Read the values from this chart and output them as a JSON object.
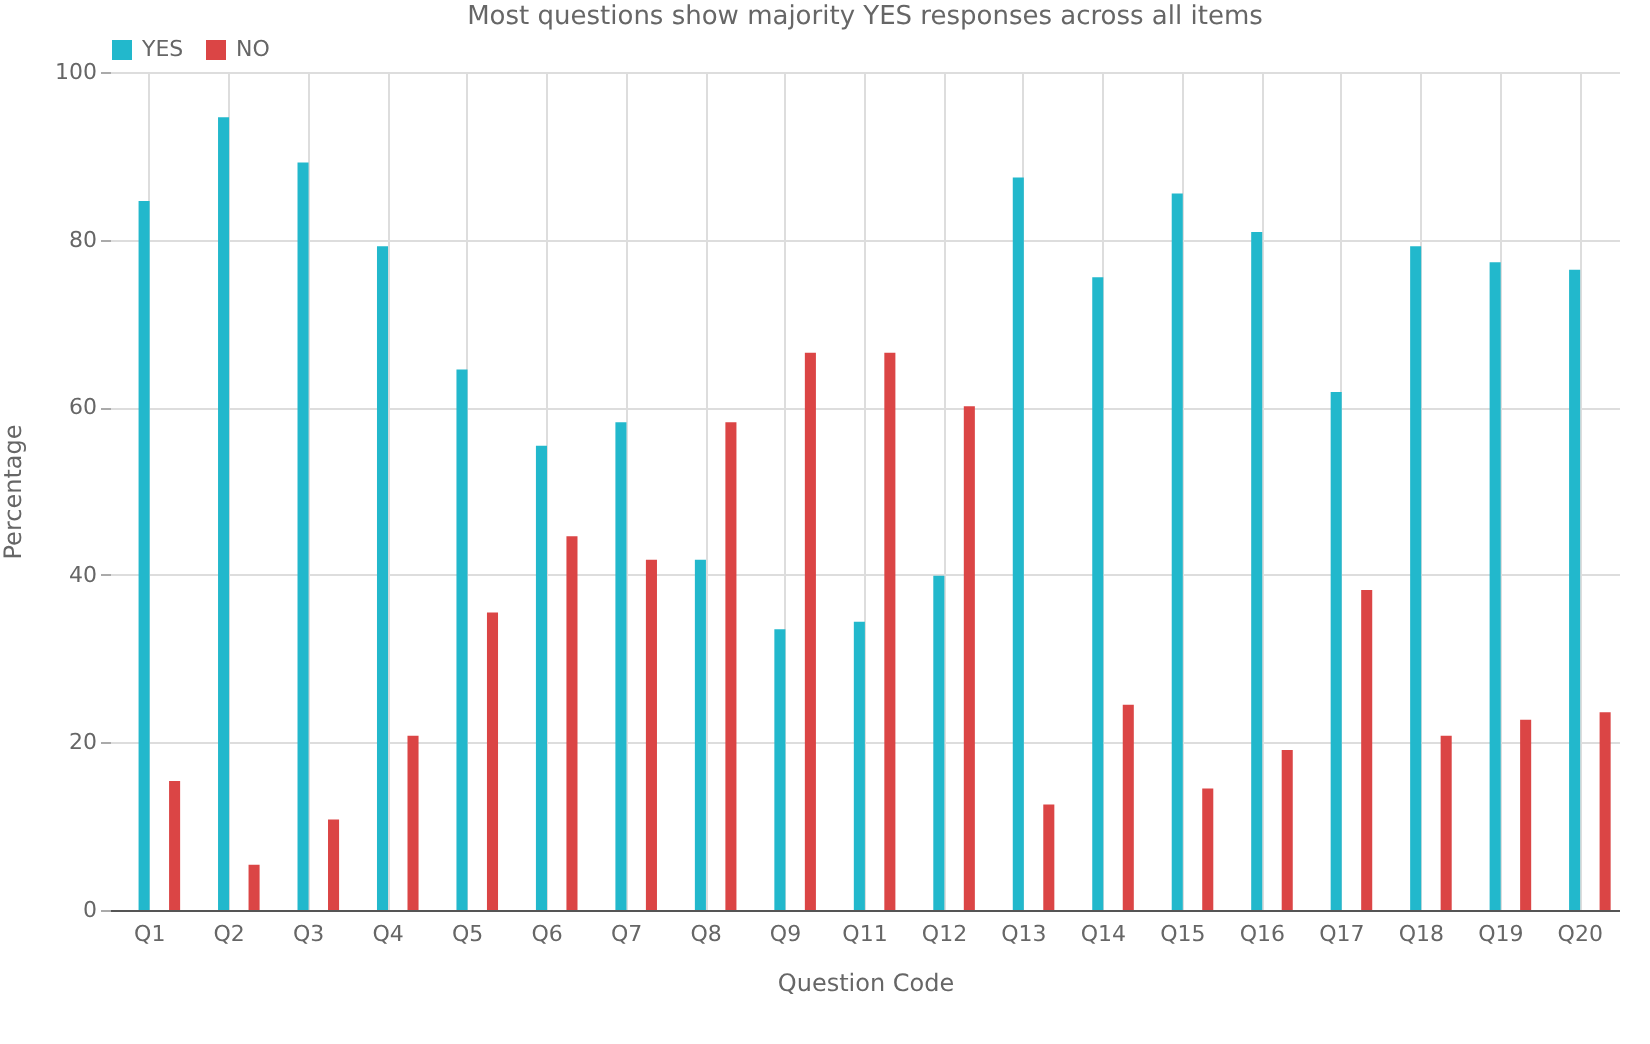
{
  "chart_data": {
    "type": "bar",
    "title": "Most questions show majority YES responses across all items",
    "xlabel": "Question Code",
    "ylabel": "Percentage",
    "categories": [
      "Q1",
      "Q2",
      "Q3",
      "Q4",
      "Q5",
      "Q6",
      "Q7",
      "Q8",
      "Q9",
      "Q11",
      "Q12",
      "Q13",
      "Q14",
      "Q15",
      "Q16",
      "Q17",
      "Q18",
      "Q19",
      "Q20"
    ],
    "series": [
      {
        "name": "YES",
        "color": "#22b8cc",
        "values": [
          84.6,
          94.6,
          89.2,
          79.2,
          64.5,
          55.4,
          58.2,
          41.8,
          33.5,
          34.4,
          39.9,
          87.4,
          75.5,
          85.5,
          80.9,
          61.8,
          79.2,
          77.3,
          76.4
        ]
      },
      {
        "name": "NO",
        "color": "#db4545",
        "values": [
          15.4,
          5.4,
          10.8,
          20.8,
          35.5,
          44.6,
          41.8,
          58.2,
          66.5,
          66.5,
          60.1,
          12.6,
          24.5,
          14.5,
          19.1,
          38.2,
          20.8,
          22.7,
          23.6
        ]
      }
    ],
    "ylim": [
      0,
      100
    ],
    "yticks": [
      0,
      20,
      40,
      60,
      80,
      100
    ],
    "grid": true,
    "legend": "top"
  }
}
